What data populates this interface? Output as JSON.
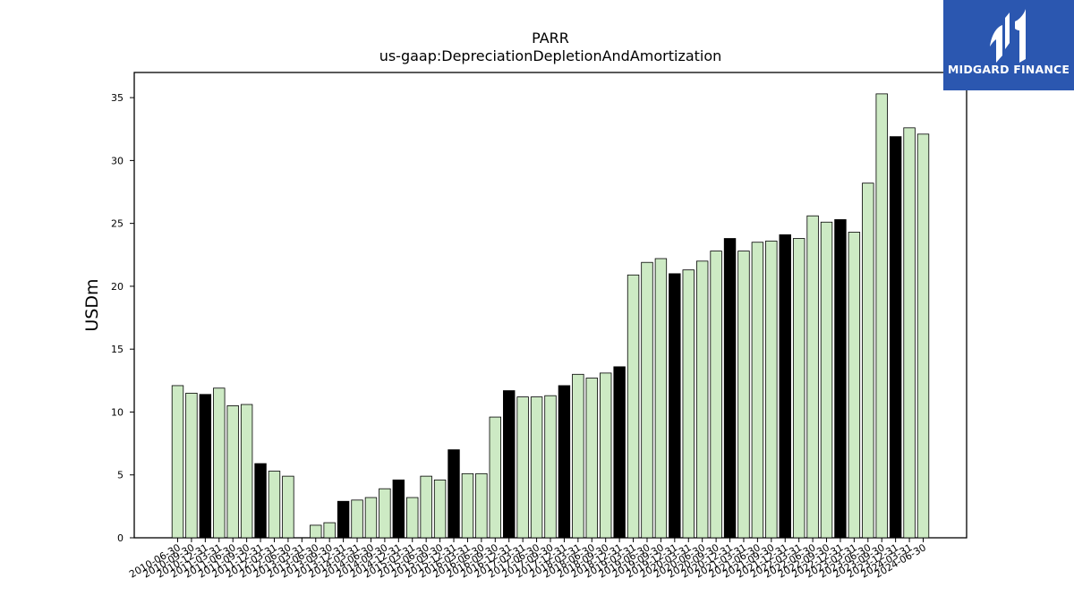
{
  "chart_data": {
    "type": "bar",
    "title": "PARR",
    "subtitle": "us-gaap:DepreciationDepletionAndAmortization",
    "xlabel": "",
    "ylabel": "USDm",
    "ylim": [
      0,
      37
    ],
    "yticks": [
      0,
      5,
      10,
      15,
      20,
      25,
      30,
      35
    ],
    "grid": false,
    "colors": {
      "light": "#cdeac4",
      "dark": "#000000",
      "edge": "#000000"
    },
    "categories": [
      "2010-06-30",
      "2010-09-30",
      "2010-12-31",
      "2011-03-31",
      "2011-06-30",
      "2011-09-30",
      "2011-12-31",
      "2012-03-31",
      "2012-06-30",
      "2013-03-31",
      "2013-06-30",
      "2013-09-30",
      "2013-12-31",
      "2014-03-31",
      "2014-06-30",
      "2014-09-30",
      "2014-12-31",
      "2015-03-31",
      "2015-06-30",
      "2015-09-30",
      "2015-12-31",
      "2016-03-31",
      "2016-06-30",
      "2016-09-30",
      "2016-12-31",
      "2017-03-31",
      "2017-06-30",
      "2017-09-30",
      "2017-12-31",
      "2018-03-31",
      "2018-06-30",
      "2018-09-30",
      "2018-12-31",
      "2019-03-31",
      "2019-06-30",
      "2019-09-30",
      "2019-12-31",
      "2020-03-31",
      "2020-06-30",
      "2020-09-30",
      "2020-12-31",
      "2021-03-31",
      "2021-06-30",
      "2021-09-30",
      "2021-12-31",
      "2022-03-31",
      "2022-06-30",
      "2022-09-30",
      "2022-12-31",
      "2023-03-31",
      "2023-06-30",
      "2023-09-30",
      "2023-12-31",
      "2024-03-31",
      "2024-06-30"
    ],
    "values": [
      12.1,
      11.5,
      11.4,
      11.9,
      10.5,
      10.6,
      5.9,
      5.3,
      4.9,
      0.0,
      1.0,
      1.2,
      2.9,
      3.0,
      3.2,
      3.9,
      4.6,
      3.2,
      4.9,
      4.6,
      7.0,
      5.1,
      5.1,
      9.6,
      11.7,
      11.2,
      11.2,
      11.3,
      12.1,
      13.0,
      12.7,
      13.1,
      13.6,
      20.9,
      21.9,
      22.2,
      21.0,
      21.3,
      22.0,
      22.8,
      23.8,
      22.8,
      23.5,
      23.6,
      24.1,
      23.8,
      25.6,
      25.1,
      25.3,
      24.3,
      28.2,
      35.3,
      31.9,
      32.6,
      32.1
    ],
    "highlight": [
      false,
      false,
      true,
      false,
      false,
      false,
      true,
      false,
      false,
      false,
      false,
      false,
      true,
      false,
      false,
      false,
      true,
      false,
      false,
      false,
      true,
      false,
      false,
      false,
      true,
      false,
      false,
      false,
      true,
      false,
      false,
      false,
      true,
      false,
      false,
      false,
      true,
      false,
      false,
      false,
      true,
      false,
      false,
      false,
      true,
      false,
      false,
      false,
      true,
      false,
      false,
      false,
      true,
      false,
      false
    ]
  },
  "logo": {
    "text": "MIDGARD FINANCE",
    "color": "#2b57b0"
  }
}
